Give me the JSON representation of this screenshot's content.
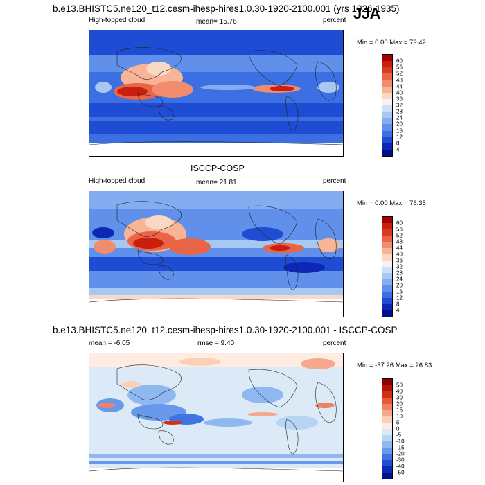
{
  "header": {
    "title": "b.e13.BHISTC5.ne120_t12.cesm-ihesp-hires1.0.30-1920-2100.001 (yrs 1926-1935)",
    "season": "JJA"
  },
  "panel1": {
    "variable": "High-topped cloud",
    "mean": "mean=  15.76",
    "units": "percent",
    "minmax": "Min =   0.00 Max =  79.42",
    "levels": [
      "60",
      "56",
      "52",
      "48",
      "44",
      "40",
      "36",
      "32",
      "28",
      "24",
      "20",
      "16",
      "12",
      "8",
      "4"
    ],
    "colors": [
      "#a50000",
      "#c8200c",
      "#dc3c1e",
      "#ea6446",
      "#f28c6e",
      "#f8b496",
      "#fad8c4",
      "#f6f4f0",
      "#cce0f6",
      "#a8c8f4",
      "#84acf0",
      "#6090ea",
      "#3c70e2",
      "#1e4cd2",
      "#0c28b4",
      "#00108c"
    ]
  },
  "panel2": {
    "title": "ISCCP-COSP",
    "variable": "High-topped cloud",
    "mean": "mean=  21.81",
    "units": "percent",
    "minmax": "Min =   0.00 Max =  76.35",
    "levels": [
      "60",
      "56",
      "52",
      "48",
      "44",
      "40",
      "36",
      "32",
      "28",
      "24",
      "20",
      "16",
      "12",
      "8",
      "4"
    ],
    "colors": [
      "#a50000",
      "#c8200c",
      "#dc3c1e",
      "#ea6446",
      "#f28c6e",
      "#f8b496",
      "#fad8c4",
      "#f6f4f0",
      "#cce0f6",
      "#a8c8f4",
      "#84acf0",
      "#6090ea",
      "#3c70e2",
      "#1e4cd2",
      "#0c28b4",
      "#00108c"
    ]
  },
  "panel3": {
    "title": "b.e13.BHISTC5.ne120_t12.cesm-ihesp-hires1.0.30-1920-2100.001 - ISCCP-COSP",
    "mean": "mean =  -6.05",
    "rmse": "rmse =   9.40",
    "units": "percent",
    "minmax": "Min = -37.26 Max =  26.83",
    "levels": [
      "50",
      "40",
      "30",
      "20",
      "15",
      "10",
      "5",
      "0",
      "-5",
      "-10",
      "-15",
      "-20",
      "-30",
      "-40",
      "-50"
    ],
    "colors": [
      "#8c0000",
      "#b41400",
      "#d23214",
      "#e65a3c",
      "#f08264",
      "#f6a88c",
      "#fad0b8",
      "#fcece2",
      "#dceaf8",
      "#b8d4f4",
      "#90b8f0",
      "#6898ea",
      "#4074e2",
      "#1e50d0",
      "#0a2cb0",
      "#001488"
    ]
  }
}
